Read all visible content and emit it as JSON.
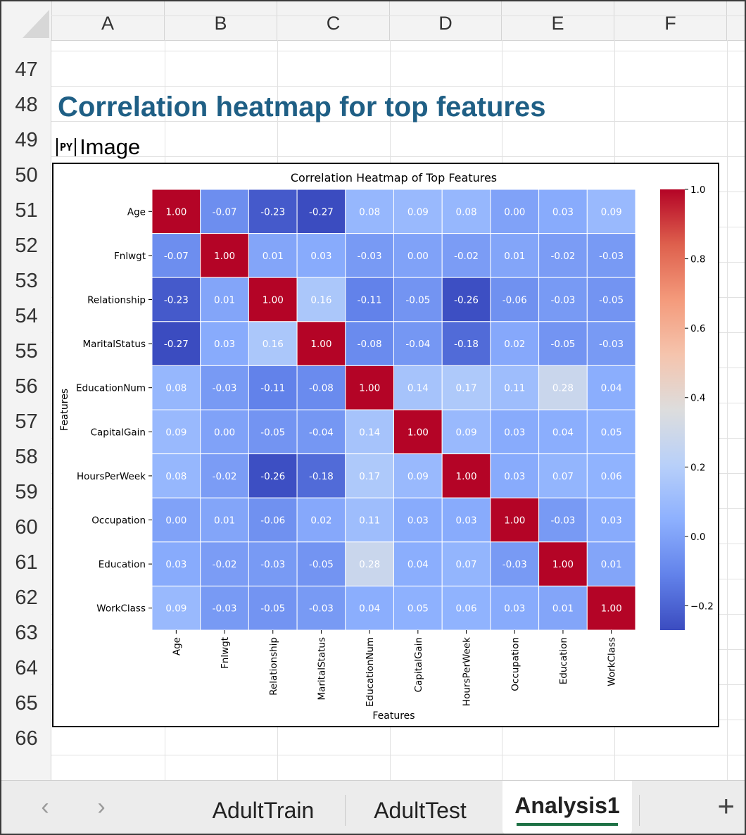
{
  "columns": [
    "A",
    "B",
    "C",
    "D",
    "E",
    "F"
  ],
  "rows": [
    "47",
    "48",
    "49",
    "50",
    "51",
    "52",
    "53",
    "54",
    "55",
    "56",
    "57",
    "58",
    "59",
    "60",
    "61",
    "62",
    "63",
    "64",
    "65",
    "66"
  ],
  "cells": {
    "a48_title": "Correlation heatmap for top features",
    "a49_badge": "PY",
    "a49_text": "Image"
  },
  "tabs": {
    "items": [
      "AdultTrain",
      "AdultTest",
      "Analysis1"
    ],
    "active": "Analysis1",
    "add": "+"
  },
  "chart_data": {
    "type": "heatmap",
    "title": "Correlation Heatmap of Top Features",
    "xlabel": "Features",
    "ylabel": "Features",
    "labels": [
      "Age",
      "Fnlwgt",
      "Relationship",
      "MaritalStatus",
      "EducationNum",
      "CapitalGain",
      "HoursPerWeek",
      "Occupation",
      "Education",
      "WorkClass"
    ],
    "matrix": [
      [
        1.0,
        -0.07,
        -0.23,
        -0.27,
        0.08,
        0.09,
        0.08,
        0.0,
        0.03,
        0.09
      ],
      [
        -0.07,
        1.0,
        0.01,
        0.03,
        -0.03,
        0.0,
        -0.02,
        0.01,
        -0.02,
        -0.03
      ],
      [
        -0.23,
        0.01,
        1.0,
        0.16,
        -0.11,
        -0.05,
        -0.26,
        -0.06,
        -0.03,
        -0.05
      ],
      [
        -0.27,
        0.03,
        0.16,
        1.0,
        -0.08,
        -0.04,
        -0.18,
        0.02,
        -0.05,
        -0.03
      ],
      [
        0.08,
        -0.03,
        -0.11,
        -0.08,
        1.0,
        0.14,
        0.17,
        0.11,
        0.28,
        0.04
      ],
      [
        0.09,
        0.0,
        -0.05,
        -0.04,
        0.14,
        1.0,
        0.09,
        0.03,
        0.04,
        0.05
      ],
      [
        0.08,
        -0.02,
        -0.26,
        -0.18,
        0.17,
        0.09,
        1.0,
        0.03,
        0.07,
        0.06
      ],
      [
        0.0,
        0.01,
        -0.06,
        0.02,
        0.11,
        0.03,
        0.03,
        1.0,
        -0.03,
        0.03
      ],
      [
        0.03,
        -0.02,
        -0.03,
        -0.05,
        0.28,
        0.04,
        0.07,
        -0.03,
        1.0,
        0.01
      ],
      [
        0.09,
        -0.03,
        -0.05,
        -0.03,
        0.04,
        0.05,
        0.06,
        0.03,
        0.01,
        1.0
      ]
    ],
    "colorbar": {
      "colormap": "coolwarm",
      "range": [
        -0.27,
        1.0
      ],
      "ticks": [
        1.0,
        0.8,
        0.6,
        0.4,
        0.2,
        0.0,
        -0.2
      ],
      "tick_labels": [
        "1.0",
        "0.8",
        "0.6",
        "0.4",
        "0.2",
        "0.0",
        "−0.2"
      ]
    }
  }
}
